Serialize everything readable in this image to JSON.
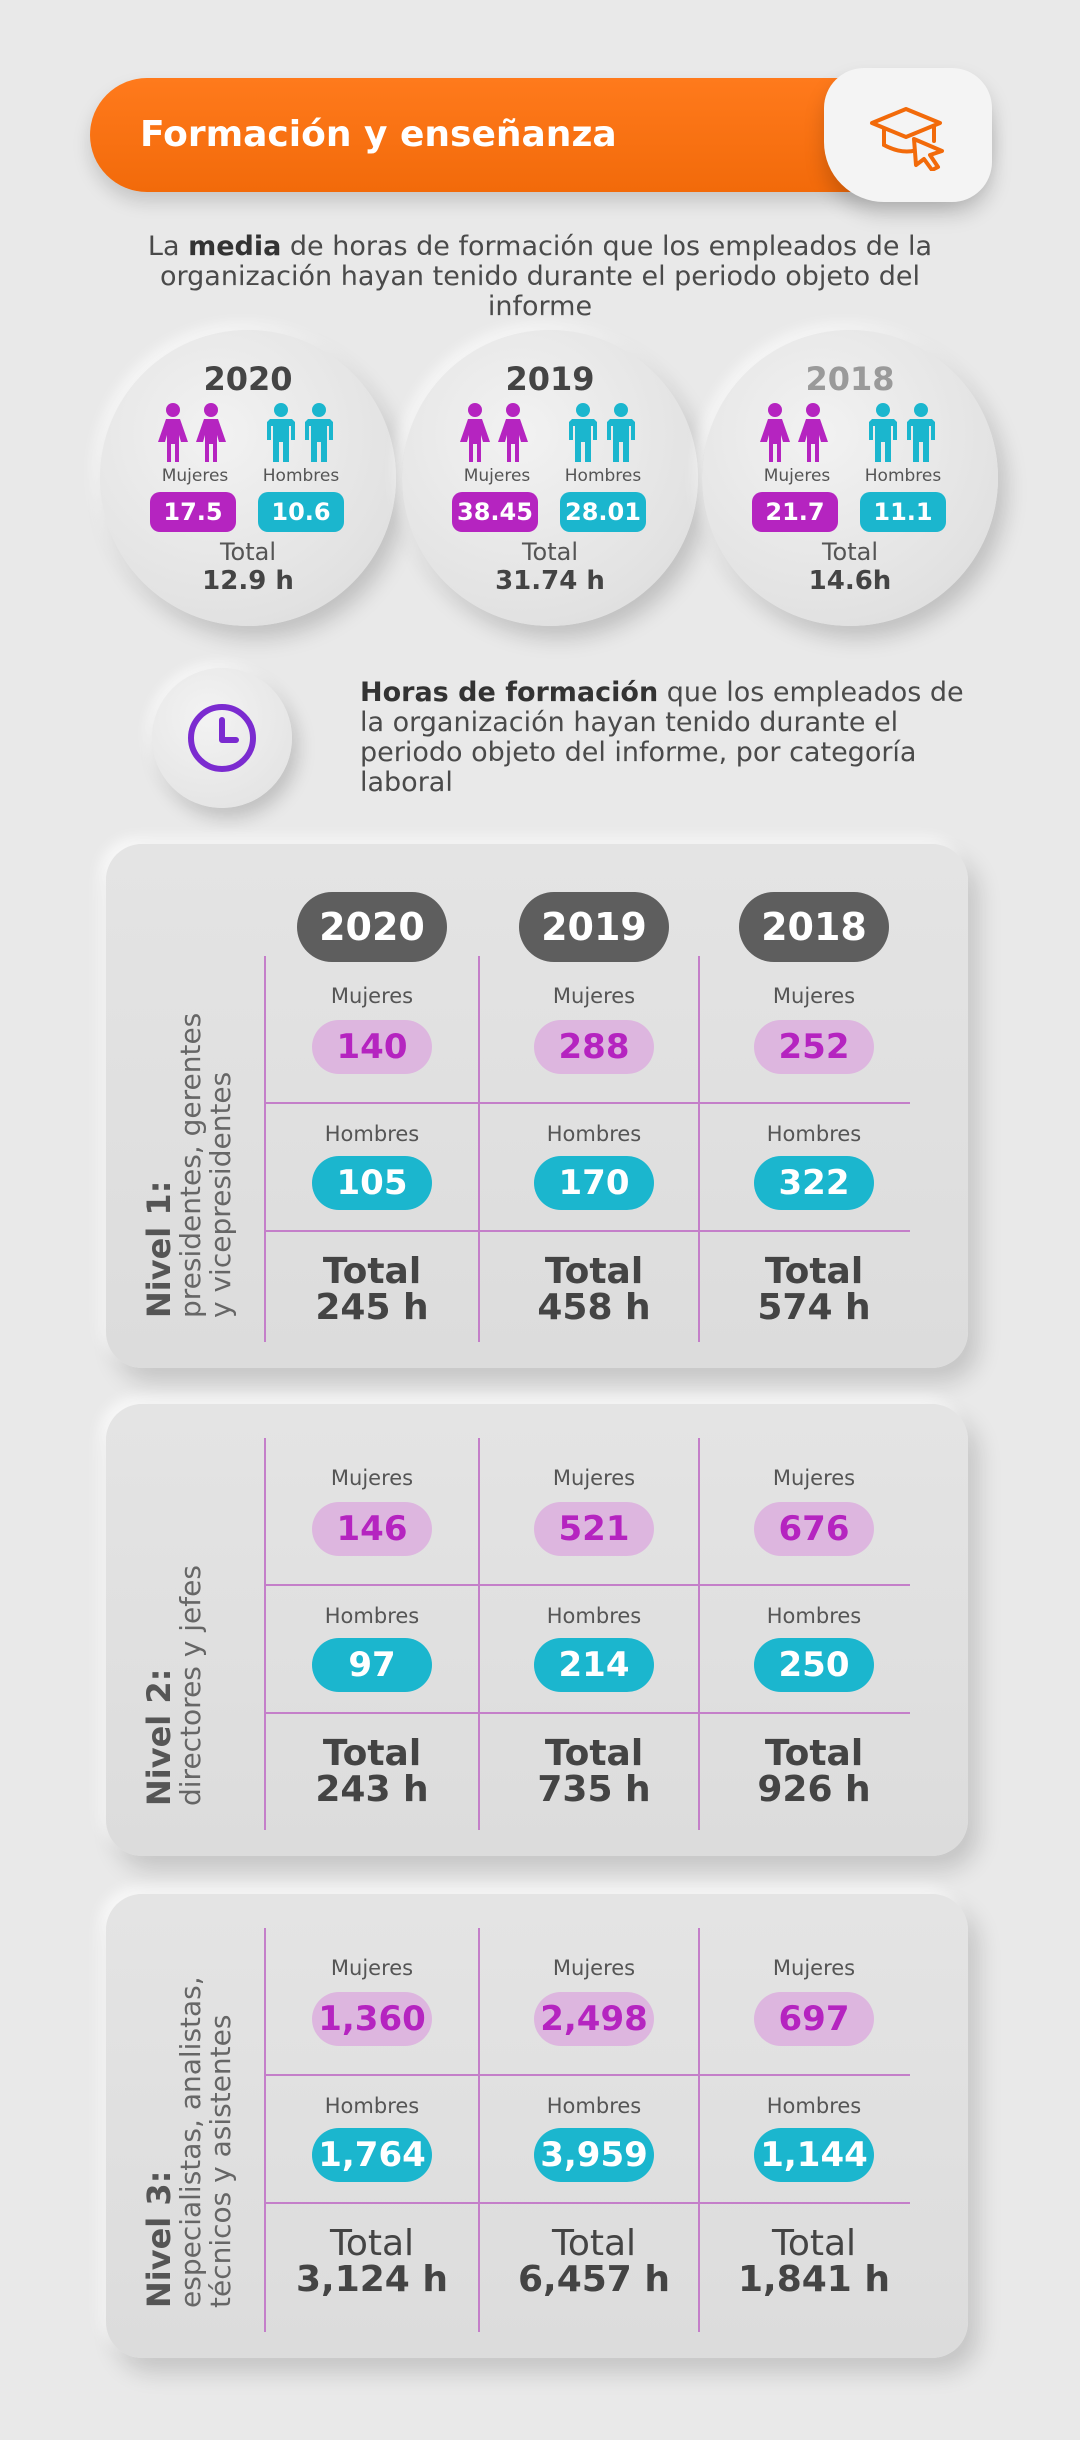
{
  "header": {
    "title": "Formación y enseñanza",
    "icon": "graduation-cap-cursor-icon"
  },
  "intro": {
    "pre": "La ",
    "bold": "media",
    "rest": " de horas de formación que los empleados de la organización hayan tenido durante el periodo objeto del informe"
  },
  "averages": [
    {
      "year": "2020",
      "mujeres_label": "Mujeres",
      "hombres_label": "Hombres",
      "mujeres": "17.5",
      "hombres": "10.6",
      "total_label": "Total",
      "total": "12.9 h"
    },
    {
      "year": "2019",
      "mujeres_label": "Mujeres",
      "hombres_label": "Hombres",
      "mujeres": "38.45",
      "hombres": "28.01",
      "total_label": "Total",
      "total": "31.74 h"
    },
    {
      "year": "2018",
      "mujeres_label": "Mujeres",
      "hombres_label": "Hombres",
      "mujeres": "21.7",
      "hombres": "11.1",
      "total_label": "Total",
      "total": "14.6h"
    }
  ],
  "hours_intro": {
    "bold": "Horas de formación",
    "rest": " que los empleados de la organización hayan tenido durante el periodo objeto del informe, por categoría laboral"
  },
  "years": [
    "2020",
    "2019",
    "2018"
  ],
  "levels": [
    {
      "title": "Nivel 1:",
      "subtitle1": "presidentes, gerentes",
      "subtitle2": "y vicepresidentes",
      "cells": [
        {
          "mujeres_label": "Mujeres",
          "mujeres": "140",
          "hombres_label": "Hombres",
          "hombres": "105",
          "total_label": "Total",
          "total": "245 h"
        },
        {
          "mujeres_label": "Mujeres",
          "mujeres": "288",
          "hombres_label": "Hombres",
          "hombres": "170",
          "total_label": "Total",
          "total": "458 h"
        },
        {
          "mujeres_label": "Mujeres",
          "mujeres": "252",
          "hombres_label": "Hombres",
          "hombres": "322",
          "total_label": "Total",
          "total": "574 h"
        }
      ]
    },
    {
      "title": "Nivel 2:",
      "subtitle1": "directores y jefes",
      "subtitle2": "",
      "cells": [
        {
          "mujeres_label": "Mujeres",
          "mujeres": "146",
          "hombres_label": "Hombres",
          "hombres": "97",
          "total_label": "Total",
          "total": "243 h"
        },
        {
          "mujeres_label": "Mujeres",
          "mujeres": "521",
          "hombres_label": "Hombres",
          "hombres": "214",
          "total_label": "Total",
          "total": "735 h"
        },
        {
          "mujeres_label": "Mujeres",
          "mujeres": "676",
          "hombres_label": "Hombres",
          "hombres": "250",
          "total_label": "Total",
          "total": "926 h"
        }
      ]
    },
    {
      "title": "Nivel 3:",
      "subtitle1": "especialistas, analistas,",
      "subtitle2": "técnicos y asistentes",
      "cells": [
        {
          "mujeres_label": "Mujeres",
          "mujeres": "1,360",
          "hombres_label": "Hombres",
          "hombres": "1,764",
          "total_label": "Total",
          "total": "3,124 h"
        },
        {
          "mujeres_label": "Mujeres",
          "mujeres": "2,498",
          "hombres_label": "Hombres",
          "hombres": "3,959",
          "total_label": "Total",
          "total": "6,457 h"
        },
        {
          "mujeres_label": "Mujeres",
          "mujeres": "697",
          "hombres_label": "Hombres",
          "hombres": "1,144",
          "total_label": "Total",
          "total": "1,841 h"
        }
      ]
    }
  ],
  "colors": {
    "orange": "#f26a0a",
    "magenta": "#b524c0",
    "teal": "#1bb6ce",
    "clock": "#7b2bd0"
  }
}
